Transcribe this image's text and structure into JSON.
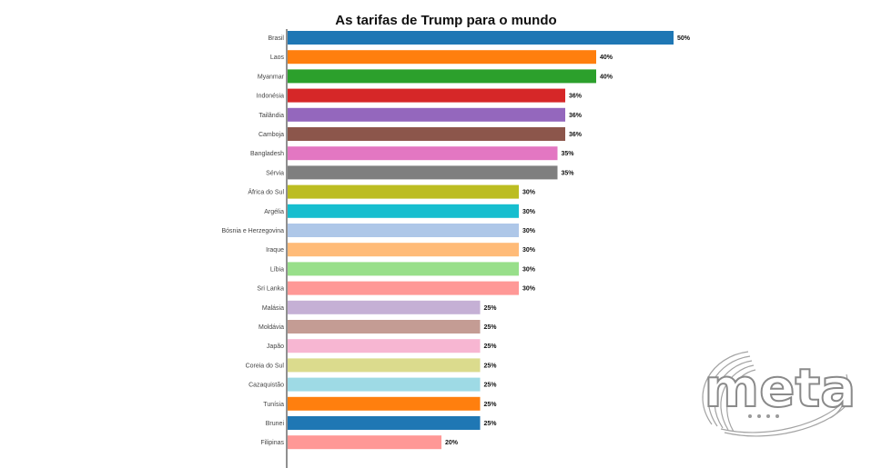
{
  "chart_data": {
    "type": "bar",
    "orientation": "horizontal",
    "title": "As tarifas de Trump para o mundo",
    "xlabel": "",
    "ylabel": "",
    "xlim": [
      0,
      50
    ],
    "grid": false,
    "categories": [
      "Brasil",
      "Laos",
      "Myanmar",
      "Indonésia",
      "Tailândia",
      "Camboja",
      "Bangladesh",
      "Sérvia",
      "África do Sul",
      "Argélia",
      "Bósnia e Herzegovina",
      "Iraque",
      "Líbia",
      "Sri Lanka",
      "Malásia",
      "Moldávia",
      "Japão",
      "Coreia do Sul",
      "Cazaquistão",
      "Tunísia",
      "Brunei",
      "Filipinas"
    ],
    "values": [
      50,
      40,
      40,
      36,
      36,
      36,
      35,
      35,
      30,
      30,
      30,
      30,
      30,
      30,
      25,
      25,
      25,
      25,
      25,
      25,
      25,
      20
    ],
    "value_labels": [
      "50%",
      "40%",
      "40%",
      "36%",
      "36%",
      "36%",
      "35%",
      "35%",
      "30%",
      "30%",
      "30%",
      "30%",
      "30%",
      "30%",
      "25%",
      "25%",
      "25%",
      "25%",
      "25%",
      "25%",
      "25%",
      "20%"
    ],
    "colors": [
      "#1f77b4",
      "#ff7f0e",
      "#2ca02c",
      "#d62728",
      "#9467bd",
      "#8c564b",
      "#e377c2",
      "#7f7f7f",
      "#bcbd22",
      "#17becf",
      "#aec7e8",
      "#ffbb78",
      "#98df8a",
      "#ff9896",
      "#c5b0d5",
      "#c49c94",
      "#f7b6d2",
      "#dbdb8d",
      "#9edae5",
      "#ff7f0e",
      "#1f77b4",
      "#ff9896"
    ]
  },
  "watermark": {
    "text": "meta",
    "color": "#ffffff",
    "stroke": "#8a8a8a"
  }
}
